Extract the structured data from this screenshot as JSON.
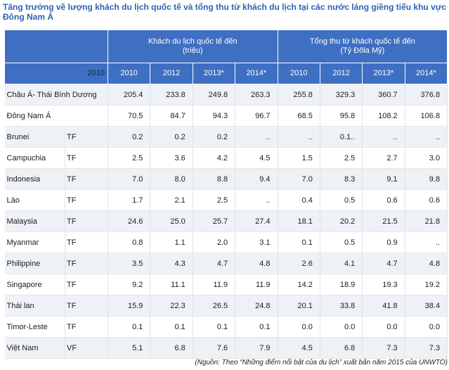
{
  "title": {
    "line1": "Tăng trưởng về lượng khách du lịch quốc tế và tổng thu từ khách du lịch tại các nước láng giềng tiểu khu vực",
    "line2": "Đông Nam Á"
  },
  "header": {
    "group1": "Khách du lịch quốc tế đến",
    "group1_unit": "(triệu)",
    "group2": "Tổng thu từ khách quốc tế đến",
    "group2_unit": "(Tỷ Đôla Mỹ)",
    "base_year": "2010",
    "arrival_years": [
      "2010",
      "2012",
      "2013*",
      "2014*"
    ],
    "receipt_years": [
      "2010",
      "2012",
      "2013*",
      "2014*"
    ]
  },
  "rows": [
    {
      "name": "Châu Á- Thái Bình Dương",
      "code": "",
      "arrivals": [
        "205.4",
        "233.8",
        "249.8",
        "263.3"
      ],
      "receipts": [
        "255.8",
        "329.3",
        "360.7",
        "376.8"
      ]
    },
    {
      "name": "Đông Nam Á",
      "code": "",
      "arrivals": [
        "70.5",
        "84.7",
        "94.3",
        "96.7"
      ],
      "receipts": [
        "68.5",
        "95.8",
        "108.2",
        "106.8"
      ]
    },
    {
      "name": "Brunei",
      "code": "TF",
      "arrivals": [
        "0.2",
        "0.2",
        "0.2",
        ".."
      ],
      "receipts": [
        "..",
        "0.1..",
        "..",
        ".."
      ]
    },
    {
      "name": "Campuchia",
      "code": "TF",
      "arrivals": [
        "2.5",
        "3.6",
        "4.2",
        "4.5"
      ],
      "receipts": [
        "1.5",
        "2.5",
        "2.7",
        "3.0"
      ]
    },
    {
      "name": "Indonesia",
      "code": "TF",
      "arrivals": [
        "7.0",
        "8.0",
        "8.8",
        "9.4"
      ],
      "receipts": [
        "7.0",
        "8.3",
        "9.1",
        "9.8"
      ]
    },
    {
      "name": "Lào",
      "code": "TF",
      "arrivals": [
        "1.7",
        "2.1",
        "2.5",
        ".."
      ],
      "receipts": [
        "0.4",
        "0.5",
        "0.6",
        "0.6"
      ]
    },
    {
      "name": "Malaysia",
      "code": "TF",
      "arrivals": [
        "24.6",
        "25.0",
        "25.7",
        "27.4"
      ],
      "receipts": [
        "18.1",
        "20.2",
        "21.5",
        "21.8"
      ]
    },
    {
      "name": "Myanmar",
      "code": "TF",
      "arrivals": [
        "0.8",
        "1.1",
        "2.0",
        "3.1"
      ],
      "receipts": [
        "0.1",
        "0.5",
        "0.9",
        ".."
      ]
    },
    {
      "name": "Philippine",
      "code": "TF",
      "arrivals": [
        "3.5",
        "4.3",
        "4.7",
        "4.8"
      ],
      "receipts": [
        "2.6",
        "4.1",
        "4.7",
        "4.8"
      ]
    },
    {
      "name": "Singapore",
      "code": "TF",
      "arrivals": [
        "9.2",
        "11.1",
        "11.9",
        "11.9"
      ],
      "receipts": [
        "14.2",
        "18.9",
        "19.3",
        "19.2"
      ]
    },
    {
      "name": "Thái lan",
      "code": "TF",
      "arrivals": [
        "15.9",
        "22.3",
        "26.5",
        "24.8"
      ],
      "receipts": [
        "20.1",
        "33.8",
        "41.8",
        "38.4"
      ]
    },
    {
      "name": "Timor-Leste",
      "code": "TF",
      "arrivals": [
        "0.1",
        "0.1",
        "0.1",
        "0.1"
      ],
      "receipts": [
        "0.0",
        "0.0",
        "0.0",
        "0.0"
      ]
    },
    {
      "name": "Việt Nam",
      "code": "VF",
      "arrivals": [
        "5.1",
        "6.8",
        "7.6",
        "7.9"
      ],
      "receipts": [
        "4.5",
        "6.8",
        "7.3",
        "7.3"
      ]
    }
  ],
  "source_note": "(Nguồn: Theo “Những điểm nổi bật của du lịch” xuất bản năm 2015 của UNWTO)",
  "colors": {
    "title": "#2e63b4",
    "header_bg": "#3f6fc2",
    "row_band": "#eef2f7"
  }
}
